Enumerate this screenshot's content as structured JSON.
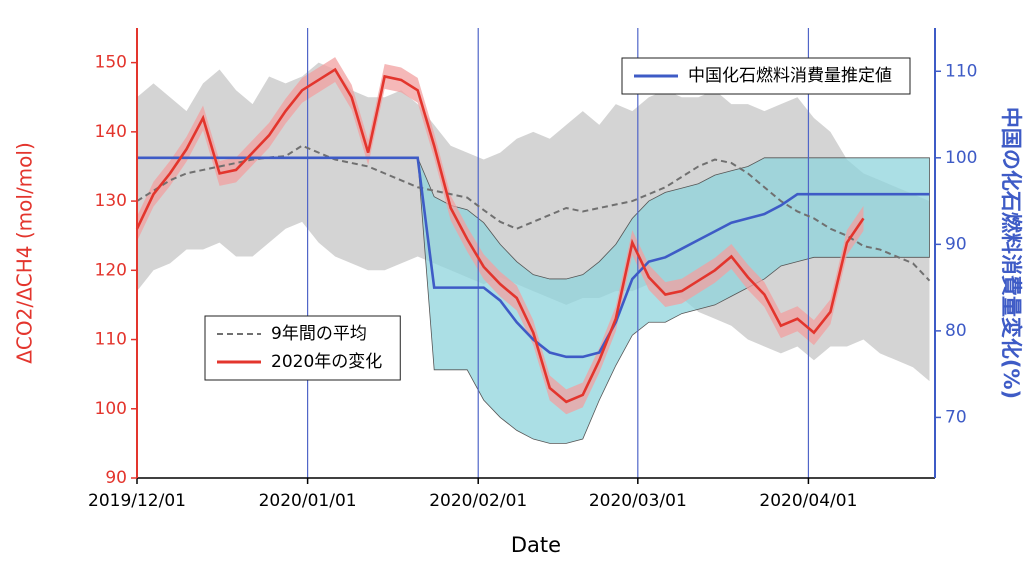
{
  "chart_data": {
    "type": "line",
    "xlabel": "Date",
    "ylabel": "ΔCO2/ΔCH4 (mol/mol)",
    "y2label": "中国の化石燃料消費量変化(%)",
    "x": [
      "2019/12/01",
      "2019/12/04",
      "2019/12/07",
      "2019/12/10",
      "2019/12/13",
      "2019/12/16",
      "2019/12/19",
      "2019/12/22",
      "2019/12/25",
      "2019/12/28",
      "2019/12/31",
      "2020/01/03",
      "2020/01/06",
      "2020/01/09",
      "2020/01/12",
      "2020/01/15",
      "2020/01/18",
      "2020/01/21",
      "2020/01/24",
      "2020/01/27",
      "2020/01/30",
      "2020/02/02",
      "2020/02/05",
      "2020/02/08",
      "2020/02/11",
      "2020/02/14",
      "2020/02/17",
      "2020/02/20",
      "2020/02/23",
      "2020/02/26",
      "2020/02/29",
      "2020/03/03",
      "2020/03/06",
      "2020/03/09",
      "2020/03/12",
      "2020/03/15",
      "2020/03/18",
      "2020/03/21",
      "2020/03/24",
      "2020/03/27",
      "2020/03/30",
      "2020/04/02",
      "2020/04/05",
      "2020/04/08",
      "2020/04/11",
      "2020/04/14",
      "2020/04/17",
      "2020/04/20",
      "2020/04/23"
    ],
    "xlim": [
      "2019/12/01",
      "2020/04/24"
    ],
    "xticks": [
      "2019/12/01",
      "2020/01/01",
      "2020/02/01",
      "2020/03/01",
      "2020/04/01"
    ],
    "ylim": [
      90,
      155
    ],
    "yticks": [
      90,
      100,
      110,
      120,
      130,
      140,
      150
    ],
    "y2lim": [
      63,
      115
    ],
    "y2ticks": [
      70,
      80,
      90,
      100,
      110
    ],
    "grid": true,
    "grid_color": "#5065c8",
    "ycolor": "#e3352d",
    "y2color": "#3e5bc6",
    "series": [
      {
        "name": "9年間の平均",
        "color": "#707070",
        "dashed": true,
        "legend": "lower left",
        "band_color": "#d4d4d4",
        "values": [
          130,
          131.5,
          133,
          134,
          134.5,
          135,
          135.5,
          136,
          136.3,
          136.5,
          138,
          137,
          136,
          135.5,
          135,
          134,
          133,
          132,
          131.5,
          131,
          130.5,
          128.7,
          127,
          126,
          127,
          128,
          129,
          128.5,
          129,
          129.5,
          130,
          131,
          132,
          133.5,
          135,
          136,
          135.5,
          134,
          132,
          130,
          128.5,
          127.5,
          126,
          125,
          123.5,
          123,
          122,
          121,
          118.5
        ],
        "lower": [
          117,
          120,
          121,
          123,
          123,
          124,
          122,
          122,
          124,
          126,
          127,
          124,
          122,
          121,
          120,
          120,
          121,
          122,
          121,
          120,
          119,
          118,
          119,
          118,
          117,
          116,
          115,
          116,
          116,
          117,
          117,
          118,
          117,
          116,
          114,
          113,
          112,
          110,
          109,
          108,
          109,
          107,
          109,
          109,
          110,
          108,
          107,
          106,
          104
        ],
        "upper": [
          145,
          147,
          145,
          143,
          147,
          149,
          146,
          144,
          148,
          147,
          148,
          150,
          149,
          146,
          145,
          145,
          146,
          144,
          141,
          138,
          137,
          136,
          137,
          139,
          140,
          139,
          141,
          143,
          141,
          144,
          143,
          145,
          146,
          145,
          145,
          146,
          144,
          144,
          143,
          144,
          145,
          142,
          140,
          136,
          134,
          133,
          132,
          131,
          130
        ]
      },
      {
        "name": "中国化石燃料消費量推定値",
        "color": "#3e5bc6",
        "axis": "y2",
        "legend": "upper right",
        "band_color": "#8fd4dc",
        "values": [
          100,
          100,
          100,
          100,
          100,
          100,
          100,
          100,
          100,
          100,
          100,
          100,
          100,
          100,
          100,
          100,
          100,
          100,
          85,
          85,
          85,
          85,
          83.5,
          81,
          79,
          77.5,
          77,
          77,
          77.5,
          81,
          86,
          88,
          88.5,
          89.5,
          90.5,
          91.5,
          92.5,
          93,
          93.5,
          94.5,
          95.8,
          95.8,
          95.8,
          95.8,
          95.8,
          95.8,
          95.8,
          95.8,
          95.8
        ],
        "lower": [
          null,
          null,
          null,
          null,
          null,
          null,
          null,
          null,
          null,
          null,
          null,
          null,
          null,
          null,
          null,
          null,
          null,
          100,
          75.5,
          75.5,
          75.5,
          72,
          70,
          68.5,
          67.5,
          67,
          67,
          67.5,
          72,
          76,
          79.5,
          81,
          81,
          82,
          82.5,
          83,
          84,
          85,
          86,
          87.5,
          88,
          88.5,
          88.5,
          88.5,
          88.5,
          88.5,
          88.5,
          88.5,
          88.5
        ],
        "upper": [
          null,
          null,
          null,
          null,
          null,
          null,
          null,
          null,
          null,
          null,
          null,
          null,
          null,
          null,
          null,
          null,
          null,
          100,
          95.5,
          94.5,
          94,
          92.5,
          90,
          88,
          86.5,
          86,
          86,
          86.5,
          88,
          90,
          93,
          95,
          96,
          96.5,
          97,
          98,
          98.5,
          99,
          100,
          100,
          100,
          100,
          100,
          100,
          100,
          100,
          100,
          100,
          100
        ]
      },
      {
        "name": "2020年の変化",
        "color": "#e3352d",
        "legend": "lower left",
        "band_color": "#f2a0a0",
        "values": [
          126,
          131,
          134,
          137.5,
          142,
          134,
          134.5,
          137,
          139.5,
          143,
          146,
          147.5,
          149,
          145,
          137,
          148,
          147.5,
          146,
          138,
          129,
          124.5,
          120.5,
          118,
          116,
          111,
          103,
          101,
          102,
          107,
          113,
          124,
          119,
          116.5,
          117,
          118.5,
          120,
          122,
          119,
          116.5,
          112,
          113,
          111,
          114,
          124,
          127.5,
          null,
          null,
          null,
          null
        ],
        "lower": [
          124.2,
          129.2,
          132.2,
          135.7,
          140.2,
          132.2,
          132.7,
          135.2,
          137.7,
          141.2,
          144.2,
          145.7,
          147.2,
          143.2,
          135.2,
          146.2,
          145.7,
          144.2,
          136.2,
          127.2,
          122.7,
          118.7,
          116.2,
          114.2,
          109.2,
          101.2,
          99.2,
          100.2,
          105.2,
          111.2,
          122.2,
          117.2,
          114.7,
          115.2,
          116.7,
          118.2,
          120.2,
          117.2,
          114.7,
          110.2,
          111.2,
          109.2,
          112.2,
          122.2,
          125.7,
          null,
          null,
          null,
          null
        ],
        "upper": [
          127.8,
          132.8,
          135.8,
          139.3,
          143.8,
          135.8,
          136.3,
          138.8,
          141.3,
          144.8,
          147.8,
          149.3,
          150.8,
          146.8,
          138.8,
          149.8,
          149.3,
          147.8,
          139.8,
          130.8,
          126.3,
          122.3,
          119.8,
          117.8,
          112.8,
          104.8,
          102.8,
          103.8,
          108.8,
          114.8,
          125.8,
          120.8,
          118.3,
          118.8,
          120.3,
          121.8,
          123.8,
          120.8,
          118.3,
          113.8,
          114.8,
          112.8,
          115.8,
          125.8,
          129.3,
          null,
          null,
          null,
          null
        ]
      }
    ]
  }
}
